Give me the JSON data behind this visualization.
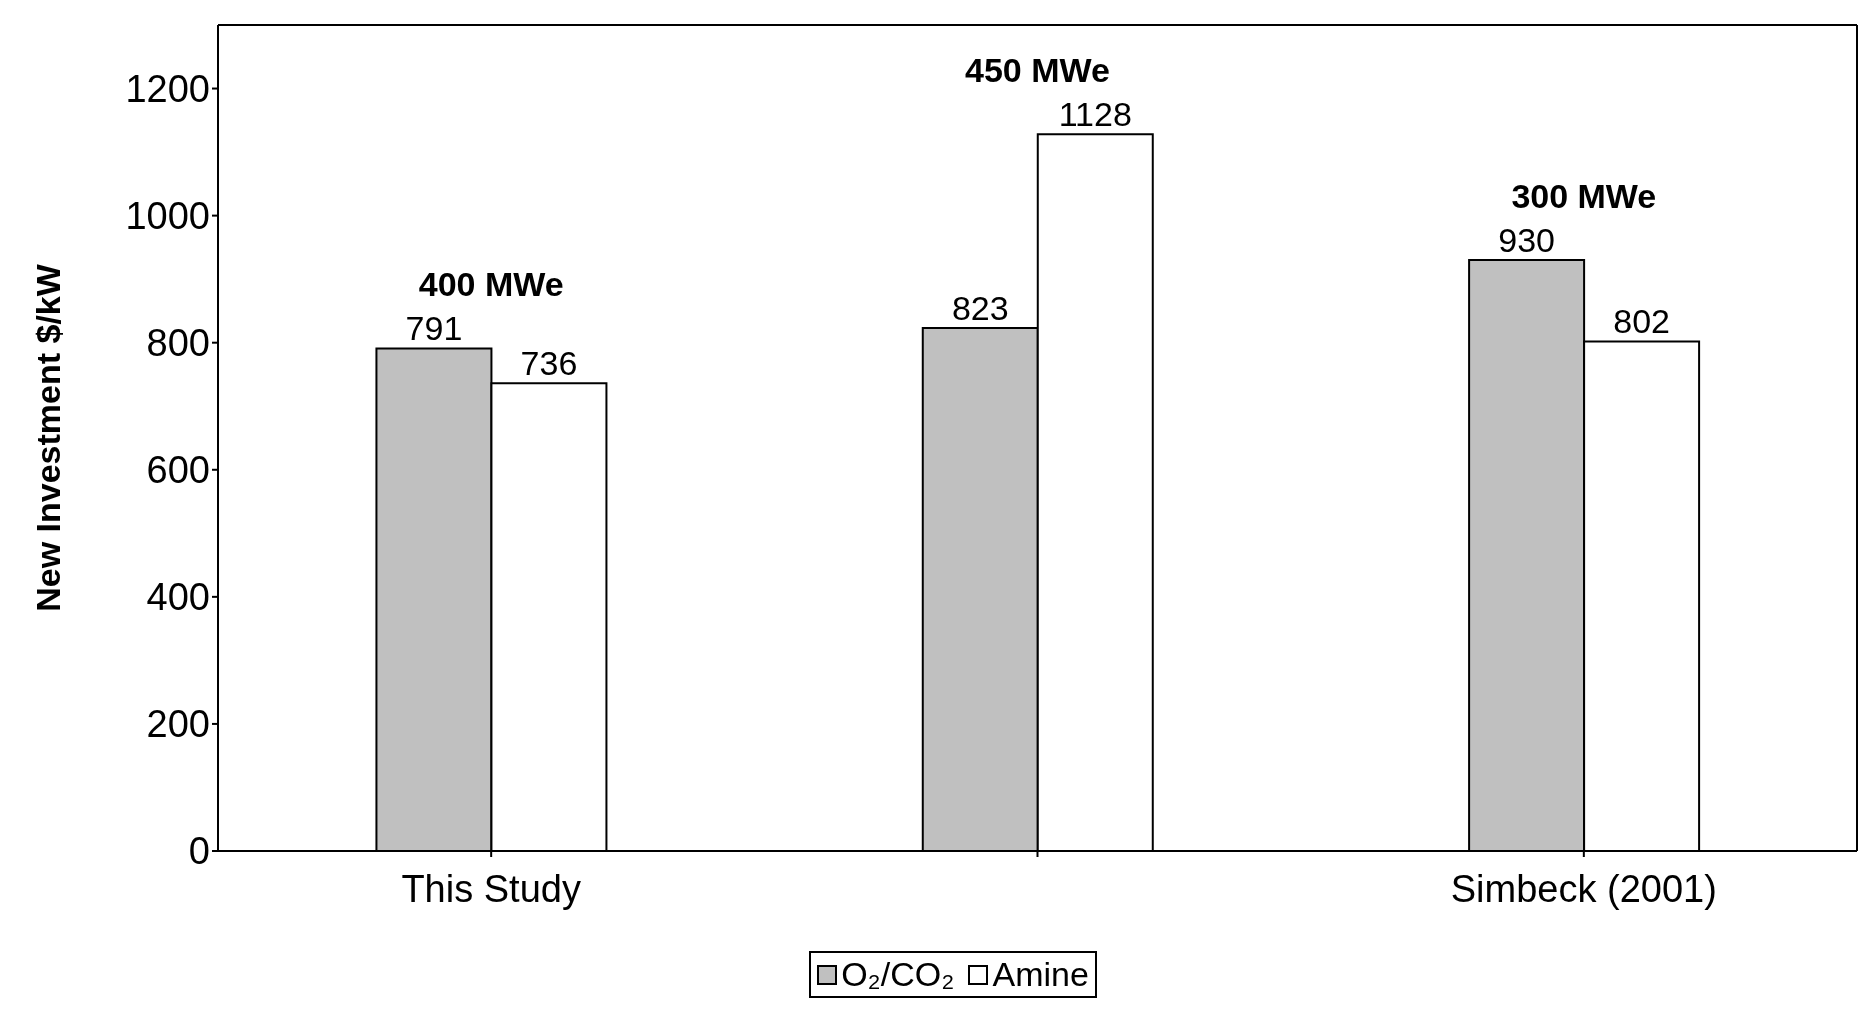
{
  "chart_data": {
    "type": "bar",
    "ylabel": "New Investment $/kW",
    "categories": [
      "This Study",
      null,
      "Simbeck (2001)"
    ],
    "series": [
      {
        "name": "O₂/CO₂",
        "color": "#c0c0c0",
        "values": [
          791,
          823,
          930
        ]
      },
      {
        "name": "Amine",
        "color": "#ffffff",
        "values": [
          736,
          1128,
          802
        ]
      }
    ],
    "ylim": [
      0,
      1300
    ],
    "yticks": [
      0,
      200,
      400,
      600,
      800,
      1000,
      1200
    ],
    "annotations": [
      "400 MWe",
      "450 MWe",
      "300 MWe"
    ],
    "data_labels": true,
    "grid": false,
    "legend": "bottom"
  }
}
